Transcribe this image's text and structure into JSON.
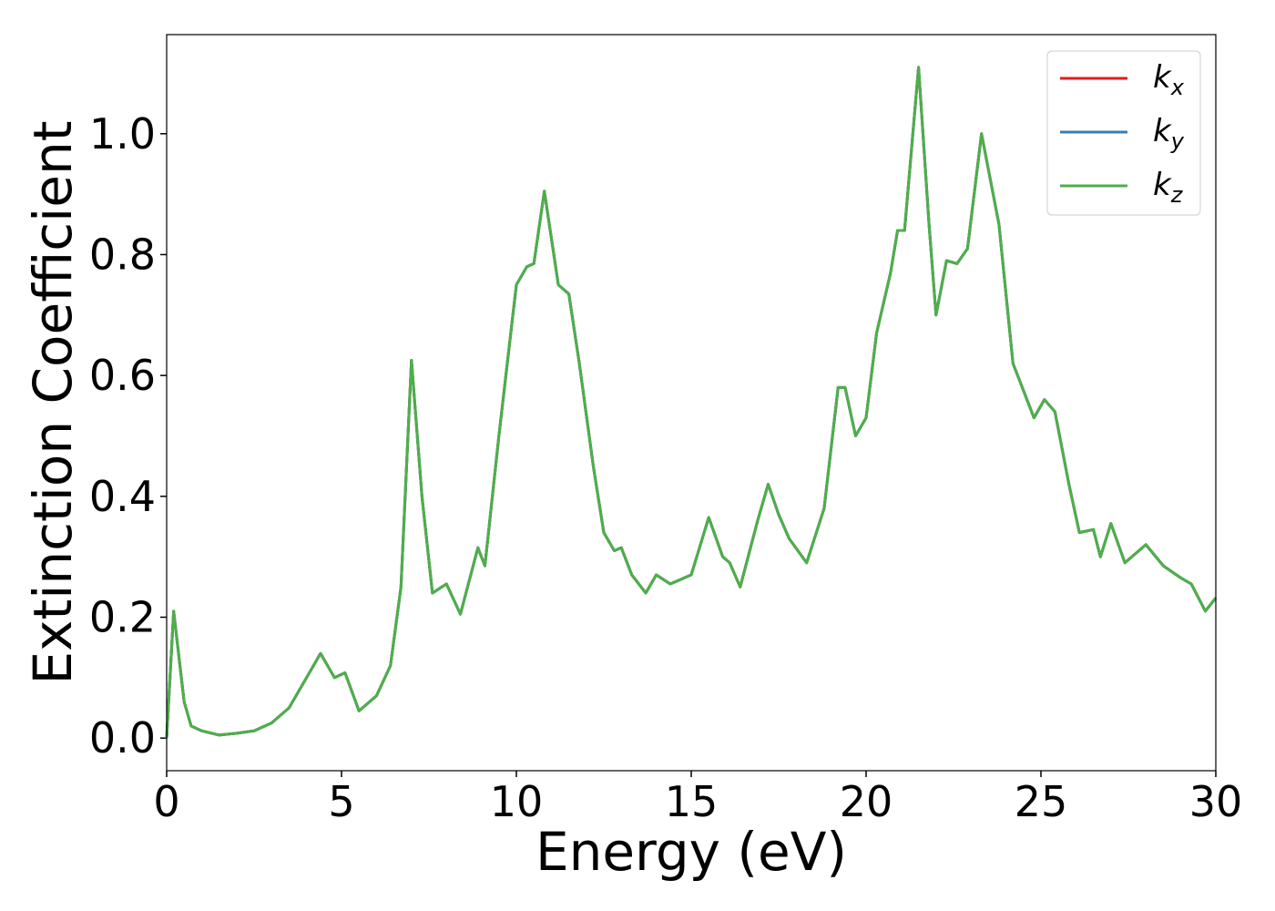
{
  "chart_data": {
    "type": "line",
    "xlabel": "Energy (eV)",
    "ylabel": "Extinction Coefficient",
    "x": [
      0,
      0.2,
      0.5,
      0.7,
      1.0,
      1.5,
      2.0,
      2.5,
      3.0,
      3.5,
      4.0,
      4.4,
      4.8,
      5.1,
      5.5,
      6.0,
      6.4,
      6.7,
      7.0,
      7.3,
      7.6,
      8.0,
      8.4,
      8.9,
      9.1,
      9.5,
      10.0,
      10.3,
      10.5,
      10.8,
      11.2,
      11.5,
      11.8,
      12.2,
      12.5,
      12.8,
      13.0,
      13.3,
      13.7,
      14.0,
      14.4,
      15.0,
      15.5,
      15.9,
      16.1,
      16.4,
      16.9,
      17.2,
      17.5,
      17.8,
      18.3,
      18.8,
      19.2,
      19.4,
      19.7,
      20.0,
      20.3,
      20.7,
      20.9,
      21.1,
      21.5,
      21.8,
      22.0,
      22.3,
      22.6,
      22.9,
      23.3,
      23.8,
      24.2,
      24.8,
      25.1,
      25.4,
      25.8,
      26.1,
      26.5,
      26.7,
      27.0,
      27.4,
      28.0,
      28.5,
      29.0,
      29.3,
      29.7,
      30.0
    ],
    "series": [
      {
        "name": "kx",
        "color": "#e41a1c",
        "values": [
          0.0,
          0.21,
          0.06,
          0.02,
          0.012,
          0.005,
          0.008,
          0.012,
          0.025,
          0.05,
          0.1,
          0.14,
          0.1,
          0.108,
          0.045,
          0.07,
          0.12,
          0.25,
          0.625,
          0.4,
          0.24,
          0.255,
          0.205,
          0.315,
          0.285,
          0.5,
          0.75,
          0.78,
          0.785,
          0.905,
          0.75,
          0.735,
          0.62,
          0.45,
          0.34,
          0.31,
          0.315,
          0.27,
          0.24,
          0.27,
          0.255,
          0.27,
          0.365,
          0.3,
          0.29,
          0.25,
          0.36,
          0.42,
          0.37,
          0.33,
          0.29,
          0.38,
          0.58,
          0.58,
          0.5,
          0.53,
          0.67,
          0.77,
          0.84,
          0.84,
          1.11,
          0.85,
          0.7,
          0.79,
          0.785,
          0.81,
          1.0,
          0.85,
          0.62,
          0.53,
          0.56,
          0.54,
          0.42,
          0.34,
          0.345,
          0.3,
          0.355,
          0.29,
          0.32,
          0.285,
          0.265,
          0.255,
          0.21,
          0.232
        ]
      },
      {
        "name": "ky",
        "color": "#377eb8",
        "values": [
          0.0,
          0.21,
          0.06,
          0.02,
          0.012,
          0.005,
          0.008,
          0.012,
          0.025,
          0.05,
          0.1,
          0.14,
          0.1,
          0.108,
          0.045,
          0.07,
          0.12,
          0.25,
          0.625,
          0.4,
          0.24,
          0.255,
          0.205,
          0.315,
          0.285,
          0.5,
          0.75,
          0.78,
          0.785,
          0.905,
          0.75,
          0.735,
          0.62,
          0.45,
          0.34,
          0.31,
          0.315,
          0.27,
          0.24,
          0.27,
          0.255,
          0.27,
          0.365,
          0.3,
          0.29,
          0.25,
          0.36,
          0.42,
          0.37,
          0.33,
          0.29,
          0.38,
          0.58,
          0.58,
          0.5,
          0.53,
          0.67,
          0.77,
          0.84,
          0.84,
          1.11,
          0.85,
          0.7,
          0.79,
          0.785,
          0.81,
          1.0,
          0.85,
          0.62,
          0.53,
          0.56,
          0.54,
          0.42,
          0.34,
          0.345,
          0.3,
          0.355,
          0.29,
          0.32,
          0.285,
          0.265,
          0.255,
          0.21,
          0.232
        ]
      },
      {
        "name": "kz",
        "color": "#4daf4a",
        "values": [
          0.0,
          0.21,
          0.06,
          0.02,
          0.012,
          0.005,
          0.008,
          0.012,
          0.025,
          0.05,
          0.1,
          0.14,
          0.1,
          0.108,
          0.045,
          0.07,
          0.12,
          0.25,
          0.625,
          0.4,
          0.24,
          0.255,
          0.205,
          0.315,
          0.285,
          0.5,
          0.75,
          0.78,
          0.785,
          0.905,
          0.75,
          0.735,
          0.62,
          0.45,
          0.34,
          0.31,
          0.315,
          0.27,
          0.24,
          0.27,
          0.255,
          0.27,
          0.365,
          0.3,
          0.29,
          0.25,
          0.36,
          0.42,
          0.37,
          0.33,
          0.29,
          0.38,
          0.58,
          0.58,
          0.5,
          0.53,
          0.67,
          0.77,
          0.84,
          0.84,
          1.11,
          0.85,
          0.7,
          0.79,
          0.785,
          0.81,
          1.0,
          0.85,
          0.62,
          0.53,
          0.56,
          0.54,
          0.42,
          0.34,
          0.345,
          0.3,
          0.355,
          0.29,
          0.32,
          0.285,
          0.265,
          0.255,
          0.21,
          0.232
        ]
      }
    ],
    "xlim": [
      0,
      30
    ],
    "xticks": [
      0,
      5,
      10,
      15,
      20,
      25,
      30
    ],
    "ylim": [
      -0.054,
      1.164
    ],
    "yticks": [
      {
        "value": 0,
        "label": "0.0"
      },
      {
        "value": 0.2,
        "label": "0.2"
      },
      {
        "value": 0.4,
        "label": "0.4"
      },
      {
        "value": 0.6,
        "label": "0.6"
      },
      {
        "value": 0.8,
        "label": "0.8"
      },
      {
        "value": 1.0,
        "label": "1.0"
      }
    ],
    "grid": false,
    "legend": "upper right"
  }
}
